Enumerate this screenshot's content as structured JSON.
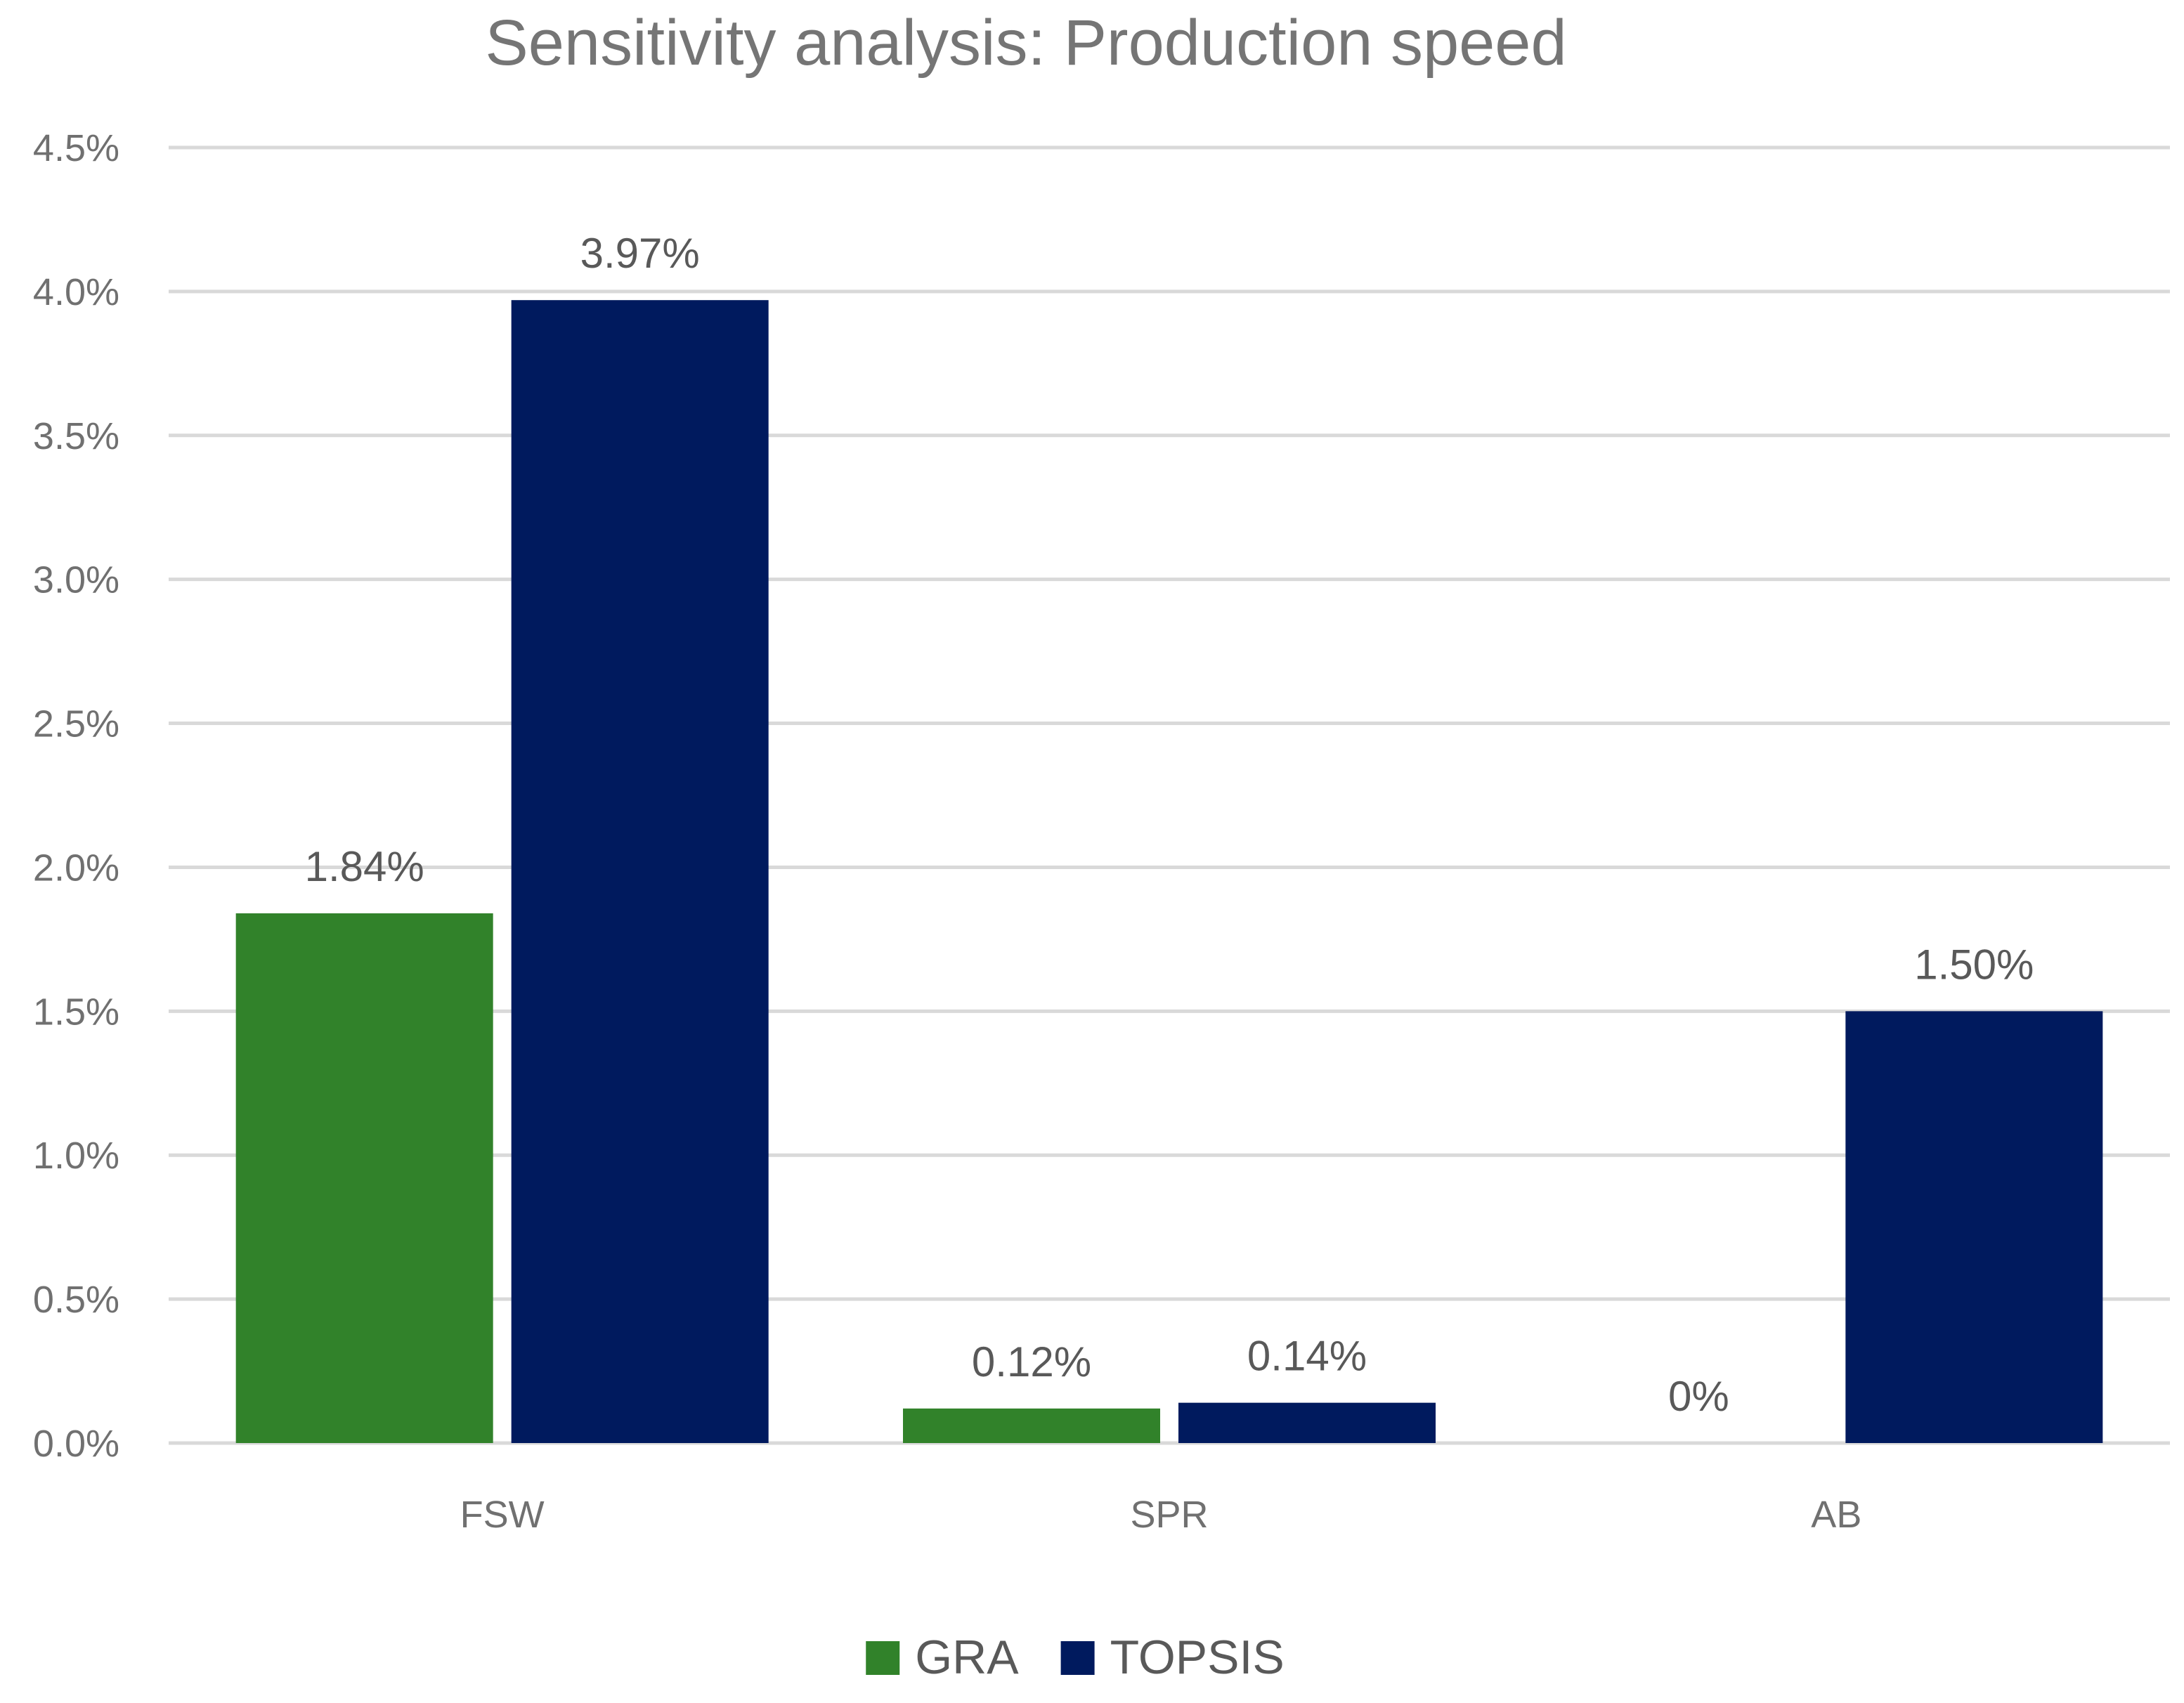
{
  "chart_data": {
    "type": "bar",
    "title": "Sensitivity analysis: Production speed",
    "xlabel": "",
    "ylabel": "",
    "categories": [
      "FSW",
      "SPR",
      "AB"
    ],
    "series": [
      {
        "name": "GRA",
        "color": "#31822a",
        "values": [
          1.84,
          0.12,
          0
        ],
        "data_labels": [
          "1.84%",
          "0.12%",
          "0%"
        ]
      },
      {
        "name": "TOPSIS",
        "color": "#001a5e",
        "values": [
          3.97,
          0.14,
          1.5
        ],
        "data_labels": [
          "3.97%",
          "0.14%",
          "1.50%"
        ]
      }
    ],
    "ylim": [
      0,
      4.5
    ],
    "y_ticks": [
      0,
      0.5,
      1.0,
      1.5,
      2.0,
      2.5,
      3.0,
      3.5,
      4.0,
      4.5
    ],
    "y_tick_labels": [
      "0.0%",
      "0.5%",
      "1.0%",
      "1.5%",
      "2.0%",
      "2.5%",
      "3.0%",
      "3.5%",
      "4.0%",
      "4.5%"
    ],
    "grid": true,
    "legend_position": "bottom-center",
    "gridline_color": "#d9d9d9"
  }
}
